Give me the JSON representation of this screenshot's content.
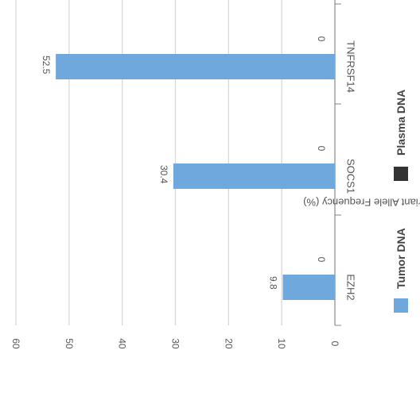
{
  "chart_data": {
    "type": "bar",
    "orientation": "rotated-90-clockwise",
    "categories": [
      "EZH2",
      "SOCS1",
      "TNFRSF14"
    ],
    "series": [
      {
        "name": "Tumor DNA",
        "values": [
          9.8,
          30.4,
          52.5
        ]
      },
      {
        "name": "Plasma DNA",
        "values": [
          0,
          0,
          0
        ]
      }
    ],
    "ylabel": "Variant Allele Frequency (%)",
    "ylim": [
      0,
      60
    ],
    "yticks": [
      0,
      10,
      20,
      30,
      40,
      50,
      60
    ],
    "grid": true,
    "legend_position": "right",
    "colors": {
      "Tumor DNA": "#6fa8dc",
      "Plasma DNA": "#333333",
      "grid": "#d9d9d9",
      "axis": "#888888",
      "text": "#555555"
    }
  }
}
